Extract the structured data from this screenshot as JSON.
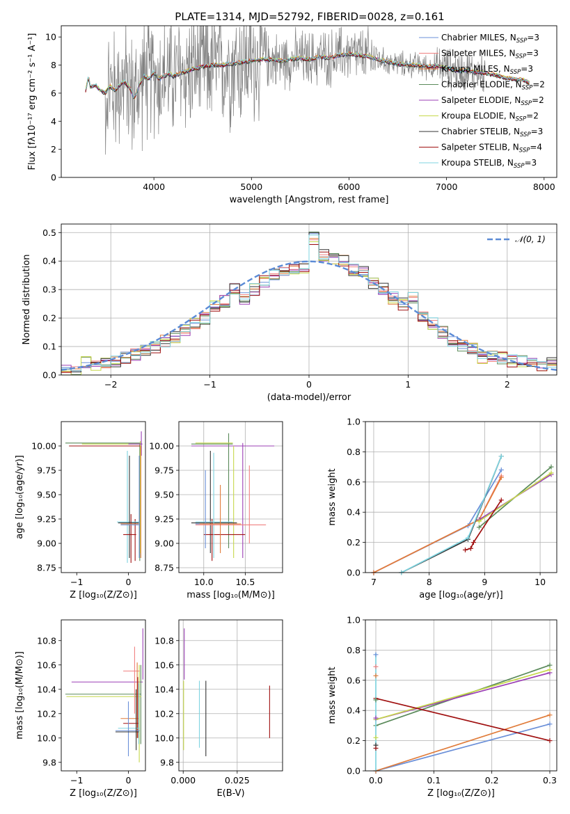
{
  "figure": {
    "title": "PLATE=1314, MJD=52792, FIBERID=0028, z=0.161"
  },
  "colors": {
    "Chabrier MILES": "#6a8fd8",
    "Salpeter MILES": "#f08080",
    "Kroupa MILES": "#e07b39",
    "Chabrier ELODIE": "#5a8a5a",
    "Salpeter ELODIE": "#9b3fb5",
    "Kroupa ELODIE": "#c6d84a",
    "Chabrier STELIB": "#333333",
    "Salpeter STELIB": "#a01010",
    "Kroupa STELIB": "#7fd4e0",
    "data": "#808080",
    "normal": "#5b8bd6"
  },
  "chart_data": [
    {
      "id": "spectrum",
      "type": "line",
      "title": "PLATE=1314, MJD=52792, FIBERID=0028, z=0.161",
      "xlabel": "wavelength [Angstrom, rest frame]",
      "ylabel": "Flux [fλ10⁻¹⁷ erg cm⁻² s⁻¹ A⁻¹]",
      "xlim": [
        3050,
        8130
      ],
      "ylim": [
        0,
        10.8
      ],
      "xticks": [
        4000,
        5000,
        6000,
        7000,
        8000
      ],
      "yticks": [
        0,
        2,
        4,
        6,
        8,
        10
      ],
      "legend_position": "top-right",
      "legend": [
        {
          "label": "Chabrier MILES, N",
          "sub": "SSP",
          "suffix": "=3"
        },
        {
          "label": "Salpeter MILES, N",
          "sub": "SSP",
          "suffix": "=3"
        },
        {
          "label": "Kroupa MILES, N",
          "sub": "SSP",
          "suffix": "=3"
        },
        {
          "label": "Chabrier ELODIE, N",
          "sub": "SSP",
          "suffix": "=2"
        },
        {
          "label": "Salpeter ELODIE, N",
          "sub": "SSP",
          "suffix": "=2"
        },
        {
          "label": "Kroupa ELODIE, N",
          "sub": "SSP",
          "suffix": "=2"
        },
        {
          "label": "Chabrier STELIB, N",
          "sub": "SSP",
          "suffix": "=3"
        },
        {
          "label": "Salpeter STELIB, N",
          "sub": "SSP",
          "suffix": "=4"
        },
        {
          "label": "Kroupa STELIB, N",
          "sub": "SSP",
          "suffix": "=3"
        }
      ],
      "model_x": [
        3300,
        3330,
        3350,
        3400,
        3450,
        3500,
        3550,
        3600,
        3650,
        3700,
        3750,
        3800,
        3850,
        3900,
        3950,
        4000,
        4050,
        4100,
        4150,
        4200,
        4300,
        4400,
        4500,
        4600,
        4700,
        4800,
        4900,
        5000,
        5100,
        5200,
        5300,
        5400,
        5500,
        5600,
        5700,
        5800,
        5900,
        6000,
        6100,
        6200,
        6300,
        6400,
        6500,
        6600,
        6700,
        6800,
        6900,
        7000,
        7100,
        7200,
        7300,
        7400,
        7500,
        7600,
        7700,
        7800,
        7850
      ],
      "model_y": [
        6.1,
        7.2,
        6.4,
        6.6,
        6.2,
        6.0,
        6.5,
        6.2,
        6.6,
        6.8,
        6.4,
        5.6,
        6.6,
        7.2,
        7.0,
        7.5,
        7.0,
        7.2,
        7.4,
        7.2,
        7.5,
        7.7,
        7.9,
        8.0,
        8.0,
        8.1,
        8.2,
        8.3,
        8.4,
        8.4,
        8.3,
        8.4,
        8.5,
        8.4,
        8.6,
        8.5,
        8.7,
        8.8,
        8.7,
        8.6,
        8.4,
        8.2,
        8.1,
        8.0,
        8.0,
        7.9,
        7.9,
        7.8,
        7.6,
        7.6,
        7.5,
        7.4,
        7.3,
        7.1,
        7.0,
        6.9,
        6.7
      ]
    },
    {
      "id": "residuals",
      "type": "line",
      "xlabel": "(data-model)/error",
      "ylabel": "Normed distribution",
      "xlim": [
        -2.5,
        2.5
      ],
      "ylim": [
        0,
        0.53
      ],
      "xticks": [
        -2,
        -1,
        0,
        1,
        2
      ],
      "yticks": [
        0.0,
        0.1,
        0.2,
        0.3,
        0.4,
        0.5
      ],
      "grid": true,
      "legend_position": "top-right",
      "legend": [
        {
          "label": "𝒩(0, 1)"
        }
      ],
      "bin_width": 0.1,
      "hist_start": -2.5,
      "base_hist": [
        0.012,
        0.02,
        0.045,
        0.03,
        0.04,
        0.05,
        0.06,
        0.07,
        0.09,
        0.1,
        0.12,
        0.135,
        0.16,
        0.18,
        0.2,
        0.24,
        0.26,
        0.3,
        0.27,
        0.3,
        0.33,
        0.35,
        0.36,
        0.37,
        0.38,
        0.48,
        0.42,
        0.41,
        0.4,
        0.37,
        0.36,
        0.32,
        0.3,
        0.27,
        0.25,
        0.27,
        0.2,
        0.18,
        0.15,
        0.12,
        0.1,
        0.09,
        0.06,
        0.07,
        0.06,
        0.05,
        0.05,
        0.04,
        0.03,
        0.04
      ]
    },
    {
      "id": "age_vs_Z",
      "type": "scatter",
      "xlabel": "Z [log₁₀(Z/Z⊙)]",
      "ylabel": "age  [log₁₀(age/yr)]",
      "xlim": [
        -1.3,
        0.33
      ],
      "ylim": [
        8.7,
        10.25
      ],
      "xticks": [
        -1,
        0
      ],
      "yticks": [
        8.75,
        9.0,
        9.25,
        9.5,
        9.75,
        10.0
      ],
      "grid": false
    },
    {
      "id": "age_vs_mass",
      "type": "scatter",
      "xlabel": "mass [log₁₀(M/M⊙)]",
      "ylabel": "",
      "xlim": [
        9.7,
        10.95
      ],
      "ylim": [
        8.7,
        10.25
      ],
      "xticks": [
        10.0,
        10.5
      ],
      "yticks": [
        8.75,
        9.0,
        9.25,
        9.5,
        9.75,
        10.0
      ],
      "grid": true
    },
    {
      "id": "weight_vs_age",
      "type": "line",
      "xlabel": "age  [log₁₀(age/yr)]",
      "ylabel": "mass weight",
      "xlim": [
        6.85,
        10.3
      ],
      "ylim": [
        0,
        1.0
      ],
      "xticks": [
        7,
        8,
        9,
        10
      ],
      "yticks": [
        0.0,
        0.2,
        0.4,
        0.6,
        0.8,
        1.0
      ],
      "grid": true,
      "series": [
        {
          "model": "Chabrier MILES",
          "x": [
            7.0,
            8.7,
            9.3
          ],
          "y": [
            0.0,
            0.31,
            0.68
          ]
        },
        {
          "model": "Salpeter MILES",
          "x": [
            7.0,
            8.9,
            9.3
          ],
          "y": [
            0.0,
            0.35,
            0.64
          ]
        },
        {
          "model": "Kroupa MILES",
          "x": [
            7.0,
            8.9,
            9.3
          ],
          "y": [
            0.0,
            0.35,
            0.63
          ]
        },
        {
          "model": "Chabrier ELODIE",
          "x": [
            8.9,
            10.2
          ],
          "y": [
            0.3,
            0.7
          ]
        },
        {
          "model": "Salpeter ELODIE",
          "x": [
            8.9,
            10.2
          ],
          "y": [
            0.35,
            0.65
          ]
        },
        {
          "model": "Kroupa ELODIE",
          "x": [
            8.9,
            10.2
          ],
          "y": [
            0.34,
            0.66
          ]
        },
        {
          "model": "Chabrier STELIB",
          "x": [
            7.5,
            8.7,
            9.3
          ],
          "y": [
            0.0,
            0.22,
            0.77
          ]
        },
        {
          "model": "Salpeter STELIB",
          "x": [
            8.65,
            8.75,
            8.8,
            9.3
          ],
          "y": [
            0.15,
            0.16,
            0.2,
            0.48
          ]
        },
        {
          "model": "Kroupa STELIB",
          "x": [
            7.5,
            8.7,
            9.3
          ],
          "y": [
            0.0,
            0.23,
            0.77
          ]
        }
      ]
    },
    {
      "id": "mass_vs_Z",
      "type": "scatter",
      "xlabel": "Z [log₁₀(Z/Z⊙)]",
      "ylabel": "mass [log₁₀(M/M⊙)]",
      "xlim": [
        -1.3,
        0.33
      ],
      "ylim": [
        9.73,
        10.97
      ],
      "xticks": [
        -1,
        0
      ],
      "yticks": [
        9.8,
        10.0,
        10.2,
        10.4,
        10.6,
        10.8
      ],
      "grid": false
    },
    {
      "id": "mass_vs_ebv",
      "type": "scatter",
      "xlabel": "E(B-V)",
      "ylabel": "",
      "xlim": [
        -0.002,
        0.046
      ],
      "ylim": [
        9.73,
        10.97
      ],
      "xticks": [
        0.0,
        0.025
      ],
      "xticklabels": [
        "0.000",
        "0.025"
      ],
      "yticks": [
        9.8,
        10.0,
        10.2,
        10.4,
        10.6,
        10.8
      ],
      "grid": true,
      "errorbars": [
        {
          "model": "Salpeter ELODIE",
          "x": 0.0005,
          "y": 10.68,
          "lo": 10.48,
          "hi": 10.9
        },
        {
          "model": "Kroupa ELODIE",
          "x": 0.0002,
          "y": 10.2,
          "lo": 9.9,
          "hi": 10.47
        },
        {
          "model": "Kroupa STELIB",
          "x": 0.0075,
          "y": 10.2,
          "lo": 9.92,
          "hi": 10.47
        },
        {
          "model": "Chabrier STELIB",
          "x": 0.0105,
          "y": 10.17,
          "lo": 9.85,
          "hi": 10.47
        },
        {
          "model": "Salpeter STELIB",
          "x": 0.04,
          "y": 10.22,
          "lo": 10.0,
          "hi": 10.43
        }
      ]
    },
    {
      "id": "weight_vs_Z",
      "type": "line",
      "xlabel": "Z [log₁₀(Z/Z⊙)]",
      "ylabel": "mass weight",
      "xlim": [
        -0.018,
        0.312
      ],
      "ylim": [
        0,
        1.0
      ],
      "xticks": [
        0.0,
        0.1,
        0.2,
        0.3
      ],
      "yticks": [
        0.0,
        0.2,
        0.4,
        0.6,
        0.8,
        1.0
      ],
      "grid": true,
      "series": [
        {
          "model": "Chabrier MILES",
          "x": [
            0.0,
            0.3
          ],
          "y": [
            0.0,
            0.31
          ]
        },
        {
          "model": "Kroupa MILES",
          "x": [
            0.0,
            0.3
          ],
          "y": [
            0.0,
            0.37
          ]
        },
        {
          "model": "Chabrier ELODIE",
          "x": [
            0.0,
            0.3
          ],
          "y": [
            0.3,
            0.7
          ]
        },
        {
          "model": "Salpeter ELODIE",
          "x": [
            0.0,
            0.3
          ],
          "y": [
            0.34,
            0.65
          ]
        },
        {
          "model": "Kroupa ELODIE",
          "x": [
            0.0,
            0.3
          ],
          "y": [
            0.34,
            0.67
          ]
        },
        {
          "model": "Salpeter STELIB",
          "x": [
            0.0,
            0.3
          ],
          "y": [
            0.48,
            0.2
          ]
        }
      ],
      "vertical_points": {
        "x": 0.0,
        "y": [
          0.77,
          0.69,
          0.63,
          0.47,
          0.35,
          0.22,
          0.17,
          0.15
        ]
      }
    }
  ]
}
